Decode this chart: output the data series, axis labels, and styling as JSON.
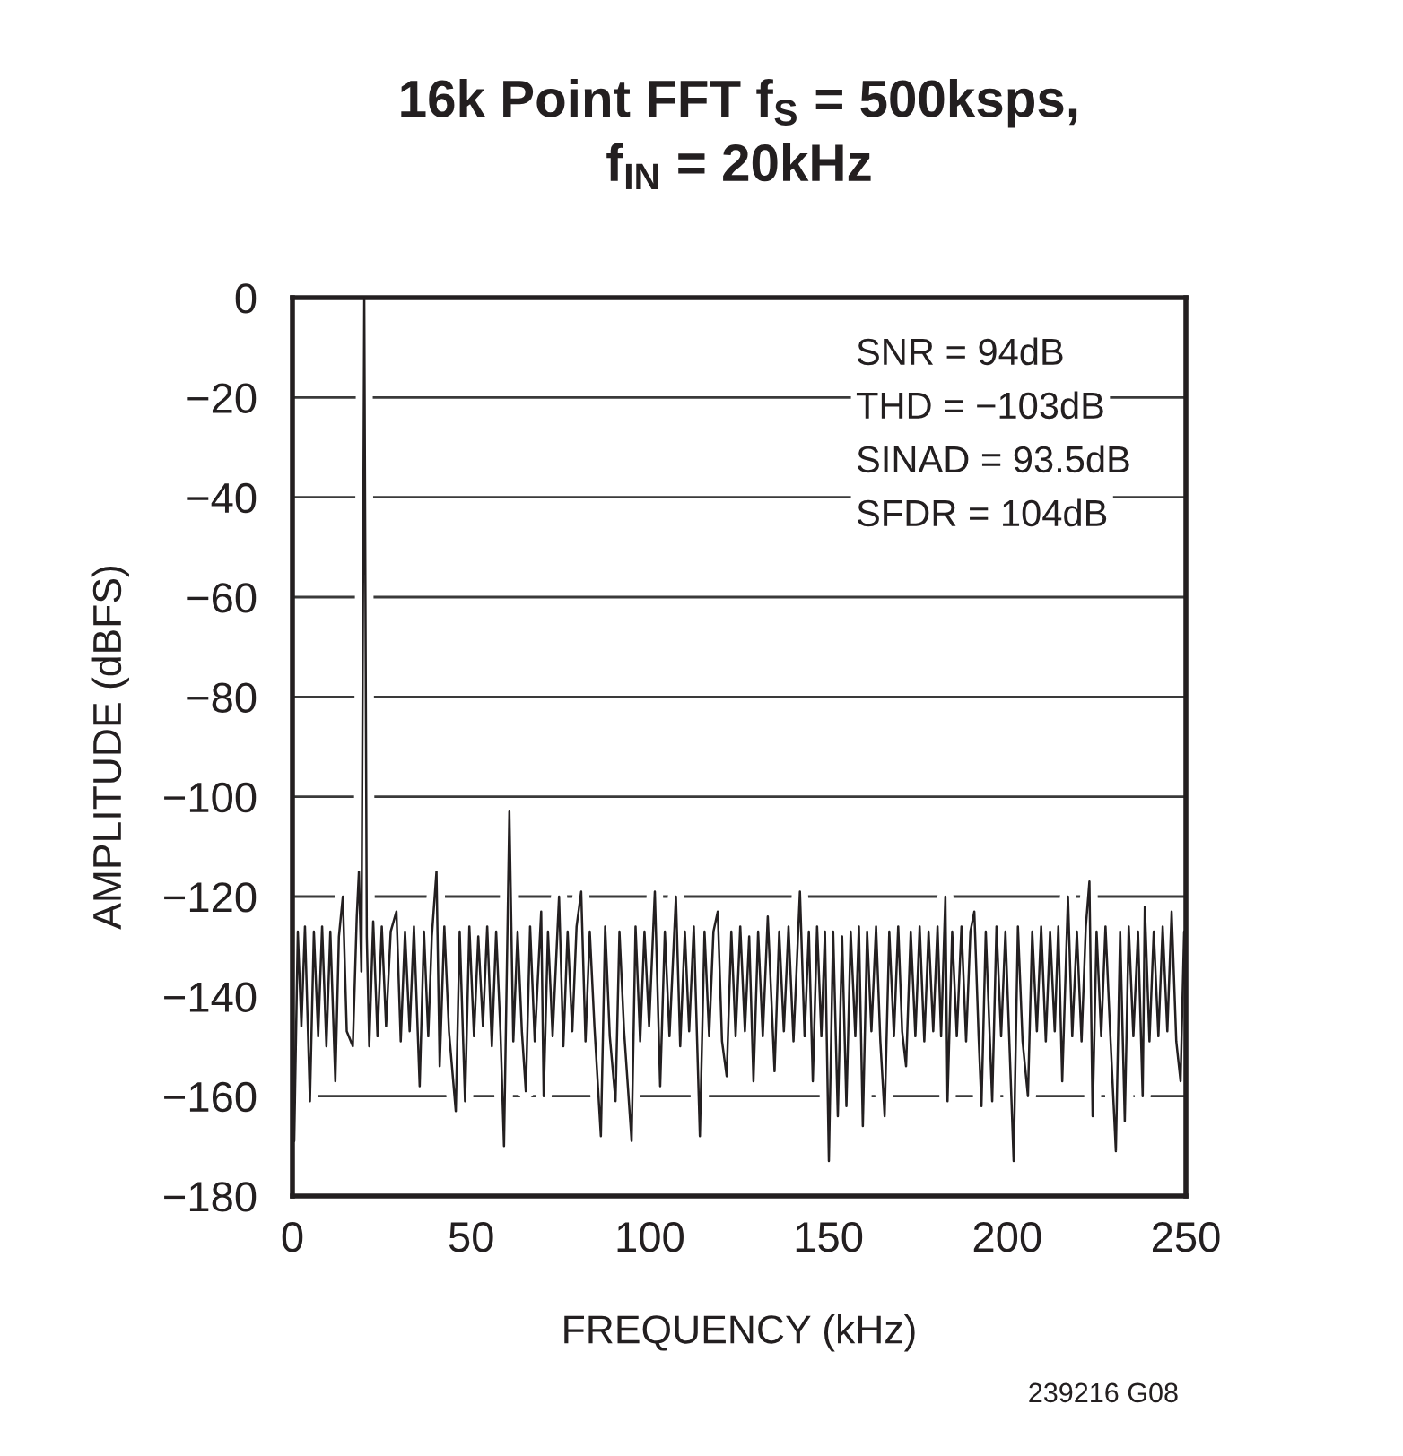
{
  "chart_data": {
    "type": "line",
    "title": "16k Point FFT f$_{S}$ = 500ksps,\nf$_{IN}$ = 20kHz",
    "xlabel": "FREQUENCY (kHz)",
    "ylabel": "AMPLITUDE (dBFS)",
    "annotations": [
      "SNR = 94dB",
      "THD = −103dB",
      "SINAD = 93.5dB",
      "SFDR = 104dB",
      "239216 G08"
    ],
    "x": [
      0,
      0.5,
      1.5,
      2.5,
      3.5,
      4.9,
      6,
      7.2,
      8.3,
      9.5,
      10.6,
      12,
      13,
      14.1,
      15.2,
      16.9,
      18,
      18.6,
      19.3,
      20.1,
      20.8,
      21.5,
      22.6,
      23.8,
      25,
      26.2,
      27.5,
      29.1,
      30.3,
      31.5,
      32.8,
      34,
      35.6,
      36.8,
      38,
      39,
      40.3,
      41.2,
      42.5,
      43.8,
      45.7,
      46.8,
      48.3,
      49.5,
      50.8,
      52,
      53.3,
      54.5,
      55.8,
      57,
      58.2,
      59.2,
      60.7,
      61.8,
      63,
      64.2,
      65.3,
      66.5,
      67.8,
      69.6,
      70.3,
      71.5,
      72.8,
      74.6,
      75.8,
      77,
      78.3,
      79.5,
      80.8,
      82,
      83.2,
      84.5,
      86.3,
      87.5,
      88.8,
      90.4,
      91.5,
      92.8,
      94.9,
      96,
      97.3,
      98.5,
      99.8,
      101.4,
      102.9,
      104.2,
      105.5,
      107.3,
      108.5,
      109.8,
      111,
      112.3,
      114,
      115.3,
      116.6,
      117.8,
      119,
      120.2,
      121.5,
      122.8,
      124,
      125.3,
      126.6,
      127.8,
      129,
      130.3,
      131.6,
      133,
      134.9,
      136.2,
      137.5,
      138.8,
      140.2,
      142,
      143.3,
      144.5,
      145.6,
      146.8,
      148,
      149,
      150.1,
      151.3,
      152.6,
      153.8,
      155,
      156.2,
      157.5,
      158.5,
      159.6,
      160.8,
      162,
      163.3,
      164.5,
      165.7,
      167,
      168.3,
      169.5,
      170.6,
      171.7,
      173,
      174.3,
      175.5,
      176.8,
      178,
      179.3,
      180.5,
      181.5,
      182.7,
      183.3,
      184.6,
      185.9,
      187.2,
      188.5,
      189.7,
      190.8,
      192,
      192.8,
      194,
      195.8,
      197,
      198.3,
      199.5,
      201.8,
      203,
      204.3,
      205.8,
      207,
      208.3,
      209.5,
      210.8,
      212,
      213.3,
      214.3,
      215.4,
      217,
      218.2,
      219.5,
      220.8,
      222,
      223,
      223.9,
      225,
      226.3,
      227.5,
      228.8,
      230.4,
      231.6,
      232.9,
      234,
      235.3,
      236.6,
      237.9,
      238.5,
      239.8,
      241,
      242.3,
      243.5,
      244.8,
      246,
      247.3,
      248.5,
      249.5,
      250
    ],
    "series": [
      {
        "color": "#231f20",
        "values": [
          -128,
          -169,
          -127,
          -146,
          -126,
          -161,
          -127,
          -148,
          -126,
          -150,
          -127,
          -157,
          -128,
          -120,
          -147,
          -150,
          -124,
          -115,
          -135,
          0,
          -128,
          -150,
          -125,
          -148,
          -126,
          -146,
          -127,
          -123,
          -149,
          -127,
          -147,
          -126,
          -158,
          -127,
          -148,
          -128,
          -115,
          -154,
          -126,
          -147,
          -163,
          -127,
          -161,
          -126,
          -148,
          -128,
          -146,
          -126,
          -150,
          -127,
          -147,
          -170,
          -103,
          -149,
          -127,
          -147,
          -159,
          -126,
          -149,
          -123,
          -160,
          -127,
          -148,
          -120,
          -150,
          -127,
          -147,
          -126,
          -119,
          -149,
          -127,
          -146,
          -168,
          -126,
          -148,
          -161,
          -127,
          -147,
          -169,
          -126,
          -149,
          -127,
          -146,
          -119,
          -158,
          -127,
          -148,
          -120,
          -150,
          -127,
          -147,
          -126,
          -168,
          -127,
          -148,
          -127,
          -123,
          -149,
          -156,
          -127,
          -148,
          -126,
          -147,
          -128,
          -157,
          -127,
          -148,
          -124,
          -155,
          -127,
          -147,
          -126,
          -149,
          -119,
          -148,
          -127,
          -157,
          -126,
          -148,
          -127,
          -173,
          -127,
          -164,
          -128,
          -162,
          -127,
          -148,
          -126,
          -166,
          -127,
          -147,
          -126,
          -149,
          -164,
          -127,
          -148,
          -126,
          -147,
          -154,
          -127,
          -148,
          -126,
          -149,
          -127,
          -147,
          -126,
          -148,
          -120,
          -161,
          -127,
          -148,
          -126,
          -149,
          -127,
          -123,
          -148,
          -162,
          -127,
          -161,
          -126,
          -148,
          -127,
          -173,
          -126,
          -149,
          -160,
          -127,
          -147,
          -126,
          -149,
          -127,
          -147,
          -126,
          -157,
          -120,
          -148,
          -127,
          -149,
          -126,
          -117,
          -164,
          -127,
          -148,
          -126,
          -147,
          -171,
          -127,
          -165,
          -126,
          -148,
          -127,
          -160,
          -122,
          -149,
          -127,
          -148,
          -126,
          -147,
          -123,
          -149,
          -157,
          -127,
          -145
        ]
      }
    ],
    "xlim": [
      0,
      250
    ],
    "ylim": [
      -180,
      0
    ],
    "xticks": [
      0,
      50,
      100,
      150,
      200,
      250
    ],
    "yticks": [
      0,
      -20,
      -40,
      -60,
      -80,
      -100,
      -120,
      -140,
      -160,
      -180
    ],
    "grid": "y"
  }
}
